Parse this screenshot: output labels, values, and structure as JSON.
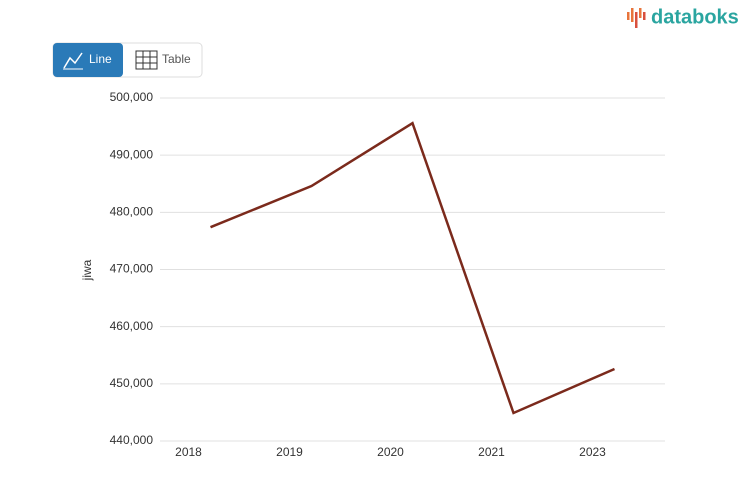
{
  "brand": "databoks",
  "buttons": [
    "Line",
    "Table"
  ],
  "chart_data": {
    "type": "line",
    "y_label": "jiwa",
    "categories": [
      "2018",
      "2019",
      "2020",
      "2021",
      "2023"
    ],
    "series": [
      {
        "name": "jiwa",
        "color": "#7b2a1c",
        "values": [
          477400,
          484600,
          495600,
          444900,
          452600
        ]
      }
    ],
    "ylim": [
      440000,
      500000
    ],
    "yticks": [
      {
        "value": 440000,
        "label": "440,000"
      },
      {
        "value": 450000,
        "label": "450,000"
      },
      {
        "value": 460000,
        "label": "460,000"
      },
      {
        "value": 470000,
        "label": "470,000"
      },
      {
        "value": 480000,
        "label": "480,000"
      },
      {
        "value": 490000,
        "label": "490,000"
      },
      {
        "value": 500000,
        "label": "500,000"
      }
    ],
    "grid": true
  }
}
